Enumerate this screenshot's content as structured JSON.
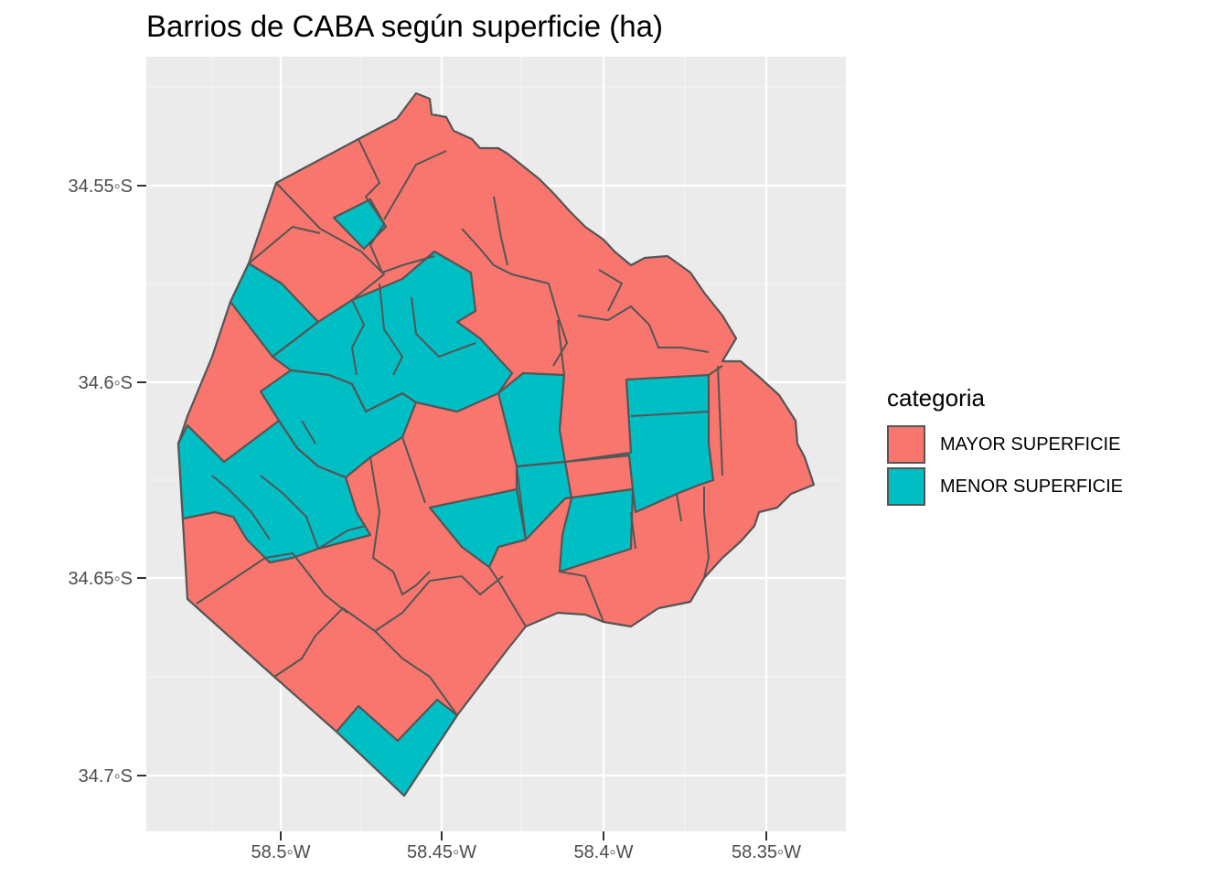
{
  "title": "Barrios de CABA según superficie (ha)",
  "legend": {
    "title": "categoria",
    "items": [
      {
        "label": "MAYOR SUPERFICIE",
        "color": "#F8766D"
      },
      {
        "label": "MENOR SUPERFICIE",
        "color": "#00BFC4"
      }
    ]
  },
  "axes": {
    "x_ticks": [
      {
        "value": -58.5,
        "label": "58.5◦W"
      },
      {
        "value": -58.45,
        "label": "58.45◦W"
      },
      {
        "value": -58.4,
        "label": "58.4◦W"
      },
      {
        "value": -58.35,
        "label": "58.35◦W"
      }
    ],
    "y_ticks": [
      {
        "value": -34.55,
        "label": "34.55◦S"
      },
      {
        "value": -34.6,
        "label": "34.6◦S"
      },
      {
        "value": -34.65,
        "label": "34.65◦S"
      },
      {
        "value": -34.7,
        "label": "34.7◦S"
      }
    ]
  },
  "style": {
    "panel_background": "#EBEBEB",
    "grid_color": "#FFFFFF",
    "border_color": "#555555",
    "mayor_color": "#F8766D",
    "menor_color": "#00BFC4"
  }
}
